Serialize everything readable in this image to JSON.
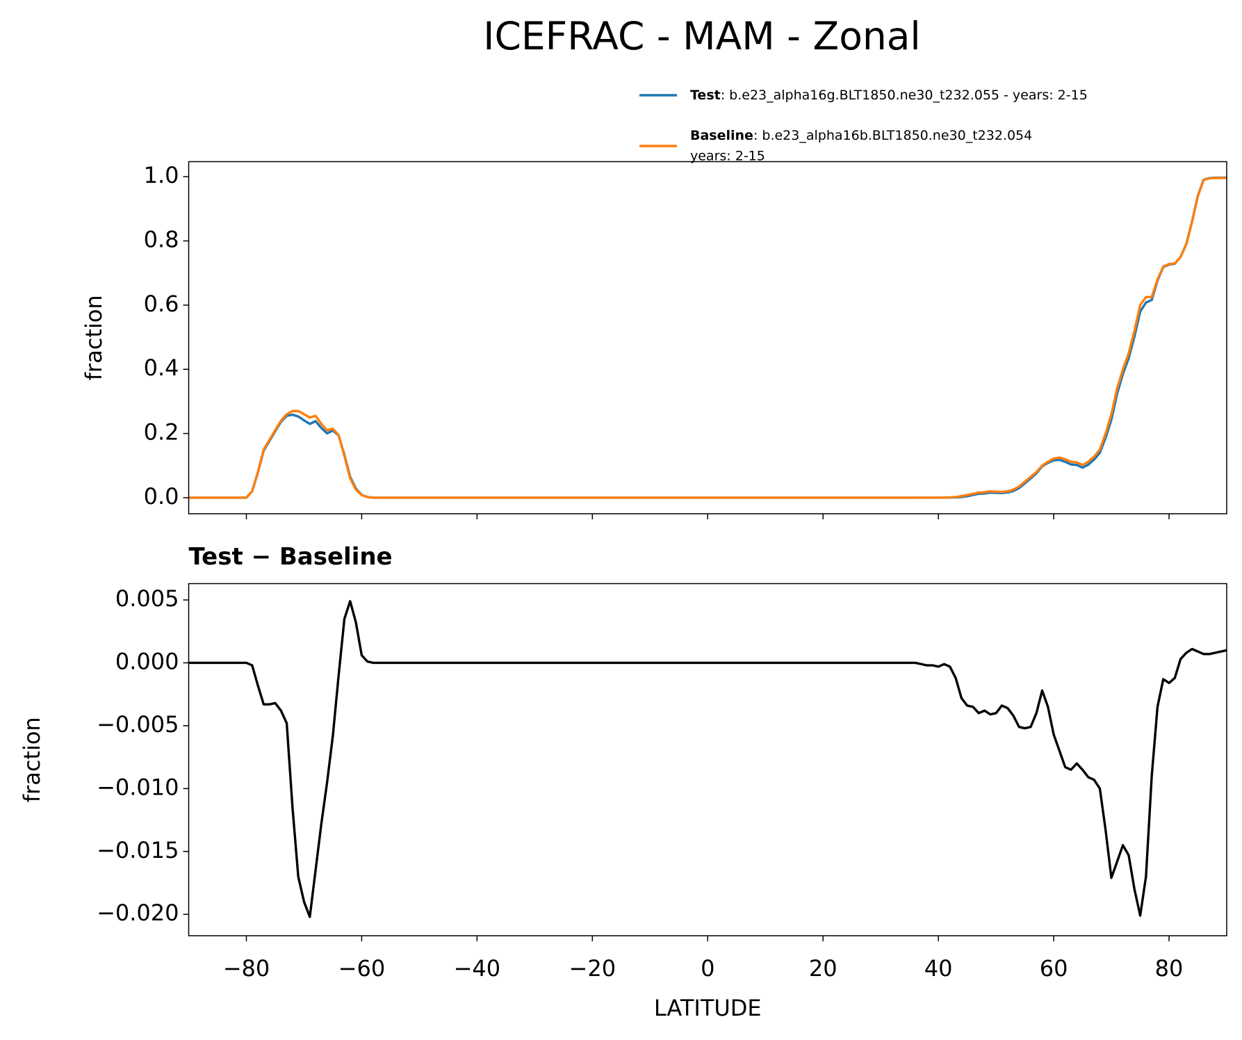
{
  "title": "ICEFRAC - MAM - Zonal",
  "chart_data": [
    {
      "type": "line",
      "ylabel": "fraction",
      "legend": "upper right",
      "show_xticklabels": false,
      "xlim": [
        -90,
        90
      ],
      "ylim": [
        -0.05,
        1.047
      ],
      "xticks": [
        -80,
        -60,
        -40,
        -20,
        0,
        20,
        40,
        60,
        80
      ],
      "yticks": [
        {
          "value": 0,
          "label": "0.0"
        },
        0.2,
        0.4,
        0.6,
        0.8,
        {
          "value": 1,
          "label": "1.0"
        }
      ],
      "x": [
        -90,
        -85,
        -80,
        -79,
        -78,
        -77,
        -76,
        -75,
        -74,
        -73,
        -72,
        -71,
        -70,
        -69,
        -68,
        -67,
        -66,
        -65,
        -64,
        -63,
        -62,
        -61,
        -60,
        -59,
        -58,
        -57,
        -56,
        -55,
        -50,
        -45,
        -40,
        -35,
        -30,
        -25,
        -20,
        -15,
        -10,
        -5,
        0,
        5,
        10,
        15,
        20,
        25,
        30,
        35,
        36,
        37,
        38,
        39,
        40,
        41,
        42,
        43,
        44,
        45,
        46,
        47,
        48,
        49,
        50,
        51,
        52,
        53,
        54,
        55,
        56,
        57,
        58,
        59,
        60,
        61,
        62,
        63,
        64,
        65,
        66,
        67,
        68,
        69,
        70,
        71,
        72,
        73,
        74,
        75,
        76,
        77,
        78,
        79,
        80,
        81,
        82,
        83,
        84,
        85,
        86,
        87,
        88,
        89,
        90
      ],
      "series": [
        {
          "name": "Test",
          "label": [
            ": b.e23_alpha16g.BLT1850.ne30_t232.055 - years: 2-15"
          ],
          "color": "#1f77b4",
          "values": [
            0,
            0,
            0,
            0.0198,
            0.0782,
            0.1467,
            0.1767,
            0.2068,
            0.2362,
            0.2552,
            0.2585,
            0.253,
            0.241,
            0.2298,
            0.2385,
            0.2172,
            0.2005,
            0.2092,
            0.194,
            0.1335,
            0.0649,
            0.0282,
            0.0086,
            0.0021,
            0,
            0,
            0,
            0,
            0,
            0,
            0,
            0,
            0,
            0,
            0,
            0,
            0,
            0,
            0,
            0,
            0,
            0,
            0,
            0,
            0,
            0,
            0,
            0,
            0,
            0,
            0,
            0.0003,
            0.0005,
            0.0008,
            0.0022,
            0.0046,
            0.0085,
            0.012,
            0.0132,
            0.0159,
            0.015,
            0.0146,
            0.0164,
            0.0208,
            0.0299,
            0.0448,
            0.0599,
            0.076,
            0.0978,
            0.1085,
            0.1163,
            0.118,
            0.1117,
            0.1035,
            0.102,
            0.0935,
            0.1029,
            0.1187,
            0.14,
            0.1867,
            0.2429,
            0.3242,
            0.3855,
            0.4347,
            0.502,
            0.5799,
            0.608,
            0.616,
            0.6765,
            0.7187,
            0.7264,
            0.7288,
            0.7503,
            0.7908,
            0.8611,
            0.9409,
            0.9907,
            0.9957,
            0.9968,
            0.9969,
            0.997
          ]
        },
        {
          "name": "Baseline",
          "label": [
            ": b.e23_alpha16b.BLT1850.ne30_t232.054",
            "years: 2-15"
          ],
          "color": "#ff7f0e",
          "values": [
            0,
            0,
            0,
            0.02,
            0.08,
            0.15,
            0.18,
            0.21,
            0.24,
            0.26,
            0.27,
            0.27,
            0.26,
            0.25,
            0.255,
            0.23,
            0.21,
            0.215,
            0.195,
            0.13,
            0.06,
            0.025,
            0.008,
            0.002,
            0,
            0,
            0,
            0,
            0,
            0,
            0,
            0,
            0,
            0,
            0,
            0,
            0,
            0,
            0,
            0,
            0,
            0,
            0,
            0,
            0,
            0,
            0,
            0.0001,
            0.0002,
            0.0002,
            0.0003,
            0.0004,
            0.0008,
            0.002,
            0.005,
            0.008,
            0.012,
            0.016,
            0.017,
            0.02,
            0.019,
            0.018,
            0.02,
            0.025,
            0.035,
            0.05,
            0.065,
            0.08,
            0.1,
            0.112,
            0.122,
            0.125,
            0.12,
            0.112,
            0.11,
            0.102,
            0.112,
            0.128,
            0.15,
            0.2,
            0.26,
            0.34,
            0.4,
            0.45,
            0.52,
            0.6,
            0.625,
            0.625,
            0.68,
            0.72,
            0.728,
            0.73,
            0.75,
            0.79,
            0.86,
            0.94,
            0.99,
            0.995,
            0.996,
            0.996,
            0.996
          ]
        }
      ]
    },
    {
      "type": "line",
      "title": "Test − Baseline",
      "ylabel": "fraction",
      "xlabel": "LATITUDE",
      "show_xticklabels": true,
      "xlim": [
        -90,
        90
      ],
      "ylim": [
        -0.0217,
        0.0063
      ],
      "xticks": [
        {
          "value": -80,
          "label": "−80"
        },
        {
          "value": -60,
          "label": "−60"
        },
        {
          "value": -40,
          "label": "−40"
        },
        {
          "value": -20,
          "label": "−20"
        },
        0,
        20,
        40,
        60,
        80
      ],
      "yticks": [
        {
          "value": -0.02,
          "label": "−0.020"
        },
        {
          "value": -0.015,
          "label": "−0.015"
        },
        {
          "value": -0.01,
          "label": "−0.010"
        },
        {
          "value": -0.005,
          "label": "−0.005"
        },
        {
          "value": 0,
          "label": "0.000"
        },
        0.005
      ],
      "x": [
        -90,
        -85,
        -80,
        -79,
        -78,
        -77,
        -76,
        -75,
        -74,
        -73,
        -72,
        -71,
        -70,
        -69,
        -68,
        -67,
        -66,
        -65,
        -64,
        -63,
        -62,
        -61,
        -60,
        -59,
        -58,
        -57,
        -56,
        -55,
        -50,
        -45,
        -40,
        -35,
        -30,
        -25,
        -20,
        -15,
        -10,
        -5,
        0,
        5,
        10,
        15,
        20,
        25,
        30,
        35,
        36,
        37,
        38,
        39,
        40,
        41,
        42,
        43,
        44,
        45,
        46,
        47,
        48,
        49,
        50,
        51,
        52,
        53,
        54,
        55,
        56,
        57,
        58,
        59,
        60,
        61,
        62,
        63,
        64,
        65,
        66,
        67,
        68,
        69,
        70,
        71,
        72,
        73,
        74,
        75,
        76,
        77,
        78,
        79,
        80,
        81,
        82,
        83,
        84,
        85,
        86,
        87,
        88,
        89,
        90
      ],
      "series": [
        {
          "color": "#000000",
          "values": [
            0,
            0,
            0,
            -0.0002,
            -0.0018,
            -0.0033,
            -0.0033,
            -0.0032,
            -0.0038,
            -0.0048,
            -0.0115,
            -0.017,
            -0.019,
            -0.0202,
            -0.0165,
            -0.0128,
            -0.0095,
            -0.0058,
            -0.001,
            0.0035,
            0.0049,
            0.0032,
            0.0006,
            0.0001,
            0,
            0,
            0,
            0,
            0,
            0,
            0,
            0,
            0,
            0,
            0,
            0,
            0,
            0,
            0,
            0,
            0,
            0,
            0,
            0,
            0,
            0,
            0,
            -0.0001,
            -0.0002,
            -0.0002,
            -0.0003,
            -0.0001,
            -0.0003,
            -0.0012,
            -0.0028,
            -0.0034,
            -0.0035,
            -0.004,
            -0.0038,
            -0.0041,
            -0.004,
            -0.0034,
            -0.0036,
            -0.0042,
            -0.0051,
            -0.0052,
            -0.0051,
            -0.004,
            -0.0022,
            -0.0035,
            -0.0057,
            -0.007,
            -0.0083,
            -0.0085,
            -0.008,
            -0.0085,
            -0.0091,
            -0.0093,
            -0.01,
            -0.0133,
            -0.0171,
            -0.0158,
            -0.0145,
            -0.0153,
            -0.018,
            -0.0201,
            -0.017,
            -0.009,
            -0.0035,
            -0.0013,
            -0.0016,
            -0.0012,
            0.0003,
            0.0008,
            0.0011,
            0.0009,
            0.0007,
            0.0007,
            0.0008,
            0.0009,
            0.001
          ]
        }
      ]
    }
  ]
}
